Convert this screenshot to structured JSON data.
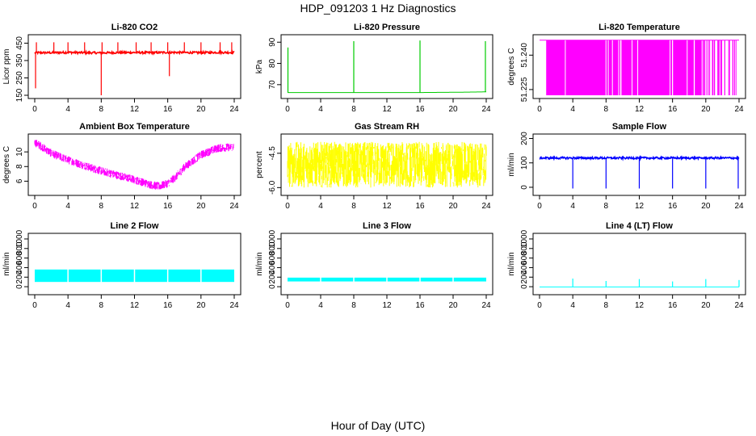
{
  "page": {
    "title": "HDP_091203  1 Hz Diagnostics",
    "xlabel": "Hour of Day (UTC)"
  },
  "colors": {
    "red": "#ff0000",
    "green": "#00cc00",
    "magenta": "#ff00ff",
    "yellow": "#ffff00",
    "blue": "#0000ff",
    "cyan": "#00ffff"
  },
  "chart_data": [
    {
      "id": "co2",
      "type": "line",
      "title": "Li-820 CO2",
      "ylabel": "Licor ppm",
      "color": "#ff0000",
      "xlim": [
        0,
        24
      ],
      "xticks": [
        0,
        4,
        8,
        12,
        16,
        20,
        24
      ],
      "ylim": [
        150,
        480
      ],
      "yticks": [
        150,
        250,
        350,
        450
      ],
      "series": [
        {
          "name": "CO2",
          "x": [
            0,
            2,
            4,
            6,
            8,
            10,
            12,
            14,
            16,
            18,
            20,
            22,
            24
          ],
          "values": [
            395,
            395,
            397,
            395,
            394,
            396,
            396,
            395,
            397,
            396,
            395,
            397,
            396
          ]
        }
      ],
      "spikes": [
        {
          "x": 0.1,
          "y": 190
        },
        {
          "x": 8.0,
          "y": 150
        },
        {
          "x": 16.2,
          "y": 260
        },
        {
          "x": 0.2,
          "y": 455
        },
        {
          "x": 2.3,
          "y": 455
        },
        {
          "x": 4.0,
          "y": 455
        },
        {
          "x": 6.0,
          "y": 455
        },
        {
          "x": 8.1,
          "y": 455
        },
        {
          "x": 10.0,
          "y": 455
        },
        {
          "x": 12.2,
          "y": 455
        },
        {
          "x": 14.0,
          "y": 455
        },
        {
          "x": 16.0,
          "y": 455
        },
        {
          "x": 18.0,
          "y": 455
        },
        {
          "x": 20.0,
          "y": 455
        },
        {
          "x": 22.3,
          "y": 455
        },
        {
          "x": 23.7,
          "y": 455
        }
      ]
    },
    {
      "id": "pressure",
      "type": "line",
      "title": "Li-820 Pressure",
      "ylabel": "kPa",
      "color": "#00cc00",
      "xlim": [
        0,
        24
      ],
      "xticks": [
        0,
        4,
        8,
        12,
        16,
        20,
        24
      ],
      "ylim": [
        65,
        92
      ],
      "yticks": [
        70,
        80,
        90
      ],
      "series": [
        {
          "name": "Pressure",
          "x": [
            0,
            4,
            8,
            12,
            16,
            20,
            24
          ],
          "values": [
            66.3,
            66.3,
            66.3,
            66.3,
            66.3,
            66.4,
            66.6
          ]
        }
      ],
      "spikes": [
        {
          "x": 0.05,
          "y": 87.5
        },
        {
          "x": 8.0,
          "y": 90.5
        },
        {
          "x": 16.0,
          "y": 90.8
        },
        {
          "x": 23.9,
          "y": 90.5
        }
      ]
    },
    {
      "id": "licor-temp",
      "type": "line",
      "title": "Li-820 Temperature",
      "ylabel": "degrees C",
      "color": "#ff00ff",
      "xlim": [
        0,
        24
      ],
      "xticks": [
        0,
        4,
        8,
        12,
        16,
        20,
        24
      ],
      "ylim": [
        51.2225,
        51.2475
      ],
      "yticks": [
        51.225,
        51.24
      ],
      "series": [
        {
          "name": "Temperature",
          "x": [
            0,
            24
          ],
          "values": [
            51.2465,
            51.2465
          ]
        }
      ],
      "fill_band": [
        0.8,
        19.5
      ]
    },
    {
      "id": "ambient-temp",
      "type": "line",
      "title": "Ambient Box Temperature",
      "ylabel": "degrees C",
      "color": "#ff00ff",
      "xlim": [
        0,
        24
      ],
      "xticks": [
        0,
        4,
        8,
        12,
        16,
        20,
        24
      ],
      "ylim": [
        4.5,
        12
      ],
      "yticks": [
        6,
        8,
        10
      ],
      "series": [
        {
          "name": "Ambient",
          "x": [
            0,
            1,
            2,
            4,
            6,
            8,
            10,
            12,
            14,
            15,
            16,
            17,
            18,
            20,
            22,
            24
          ],
          "values": [
            11.3,
            10.6,
            9.8,
            8.9,
            8.1,
            7.4,
            6.8,
            6.2,
            5.5,
            5.3,
            5.7,
            6.6,
            7.9,
            9.6,
            10.5,
            10.7
          ]
        }
      ],
      "noise": 0.7
    },
    {
      "id": "gas-rh",
      "type": "line",
      "title": "Gas Stream RH",
      "ylabel": "percent",
      "color": "#ffff00",
      "xlim": [
        0,
        24
      ],
      "xticks": [
        0,
        4,
        8,
        12,
        16,
        20,
        24
      ],
      "ylim": [
        -6.2,
        -3.8
      ],
      "yticks": [
        -6.0,
        -4.5
      ],
      "series": [
        {
          "name": "RH",
          "x": [
            0,
            24
          ],
          "values": [
            -5.0,
            -5.0
          ]
        }
      ],
      "noise": 1.0
    },
    {
      "id": "sample-flow",
      "type": "line",
      "title": "Sample Flow",
      "ylabel": "ml/min",
      "color": "#0000ff",
      "xlim": [
        0,
        24
      ],
      "xticks": [
        0,
        4,
        8,
        12,
        16,
        20,
        24
      ],
      "ylim": [
        -20,
        205
      ],
      "yticks": [
        0,
        100,
        200
      ],
      "series": [
        {
          "name": "Flow",
          "x": [
            0,
            24
          ],
          "values": [
            120,
            120
          ]
        }
      ],
      "spikes": [
        {
          "x": 4.0,
          "y": -5
        },
        {
          "x": 8.0,
          "y": -5
        },
        {
          "x": 12.0,
          "y": -5
        },
        {
          "x": 16.0,
          "y": -5
        },
        {
          "x": 20.0,
          "y": -5
        },
        {
          "x": 23.9,
          "y": -5
        }
      ]
    },
    {
      "id": "line2-flow",
      "type": "line",
      "title": "Line 2 Flow",
      "ylabel": "ml/min",
      "color": "#00ffff",
      "xlim": [
        0,
        24
      ],
      "xticks": [
        0,
        4,
        8,
        12,
        16,
        20,
        24
      ],
      "ylim": [
        -100,
        1050
      ],
      "yticks": [
        0,
        200,
        400,
        600,
        800,
        1000
      ],
      "series": [
        {
          "name": "Line 2",
          "x": [
            0,
            24
          ],
          "values": [
            230,
            230
          ]
        }
      ],
      "band": [
        100,
        360
      ]
    },
    {
      "id": "line3-flow",
      "type": "line",
      "title": "Line 3 Flow",
      "ylabel": "ml/min",
      "color": "#00ffff",
      "xlim": [
        0,
        24
      ],
      "xticks": [
        0,
        4,
        8,
        12,
        16,
        20,
        24
      ],
      "ylim": [
        -100,
        1050
      ],
      "yticks": [
        0,
        200,
        400,
        600,
        800,
        1000
      ],
      "series": [
        {
          "name": "Line 3",
          "x": [
            0,
            24
          ],
          "values": [
            150,
            150
          ]
        }
      ],
      "band": [
        110,
        190
      ]
    },
    {
      "id": "line4-flow",
      "type": "line",
      "title": "Line 4 (LT) Flow",
      "ylabel": "ml/min",
      "color": "#00ffff",
      "xlim": [
        0,
        24
      ],
      "xticks": [
        0,
        4,
        8,
        12,
        16,
        20,
        24
      ],
      "ylim": [
        -100,
        1050
      ],
      "yticks": [
        0,
        200,
        400,
        600,
        800,
        1000
      ],
      "series": [
        {
          "name": "Line 4",
          "x": [
            0,
            24
          ],
          "values": [
            -5,
            -5
          ]
        }
      ],
      "spikes": [
        {
          "x": 4.0,
          "y": 170
        },
        {
          "x": 8.0,
          "y": 120
        },
        {
          "x": 12.0,
          "y": 160
        },
        {
          "x": 16.0,
          "y": 110
        },
        {
          "x": 20.0,
          "y": 160
        },
        {
          "x": 24.0,
          "y": 140
        }
      ]
    }
  ]
}
